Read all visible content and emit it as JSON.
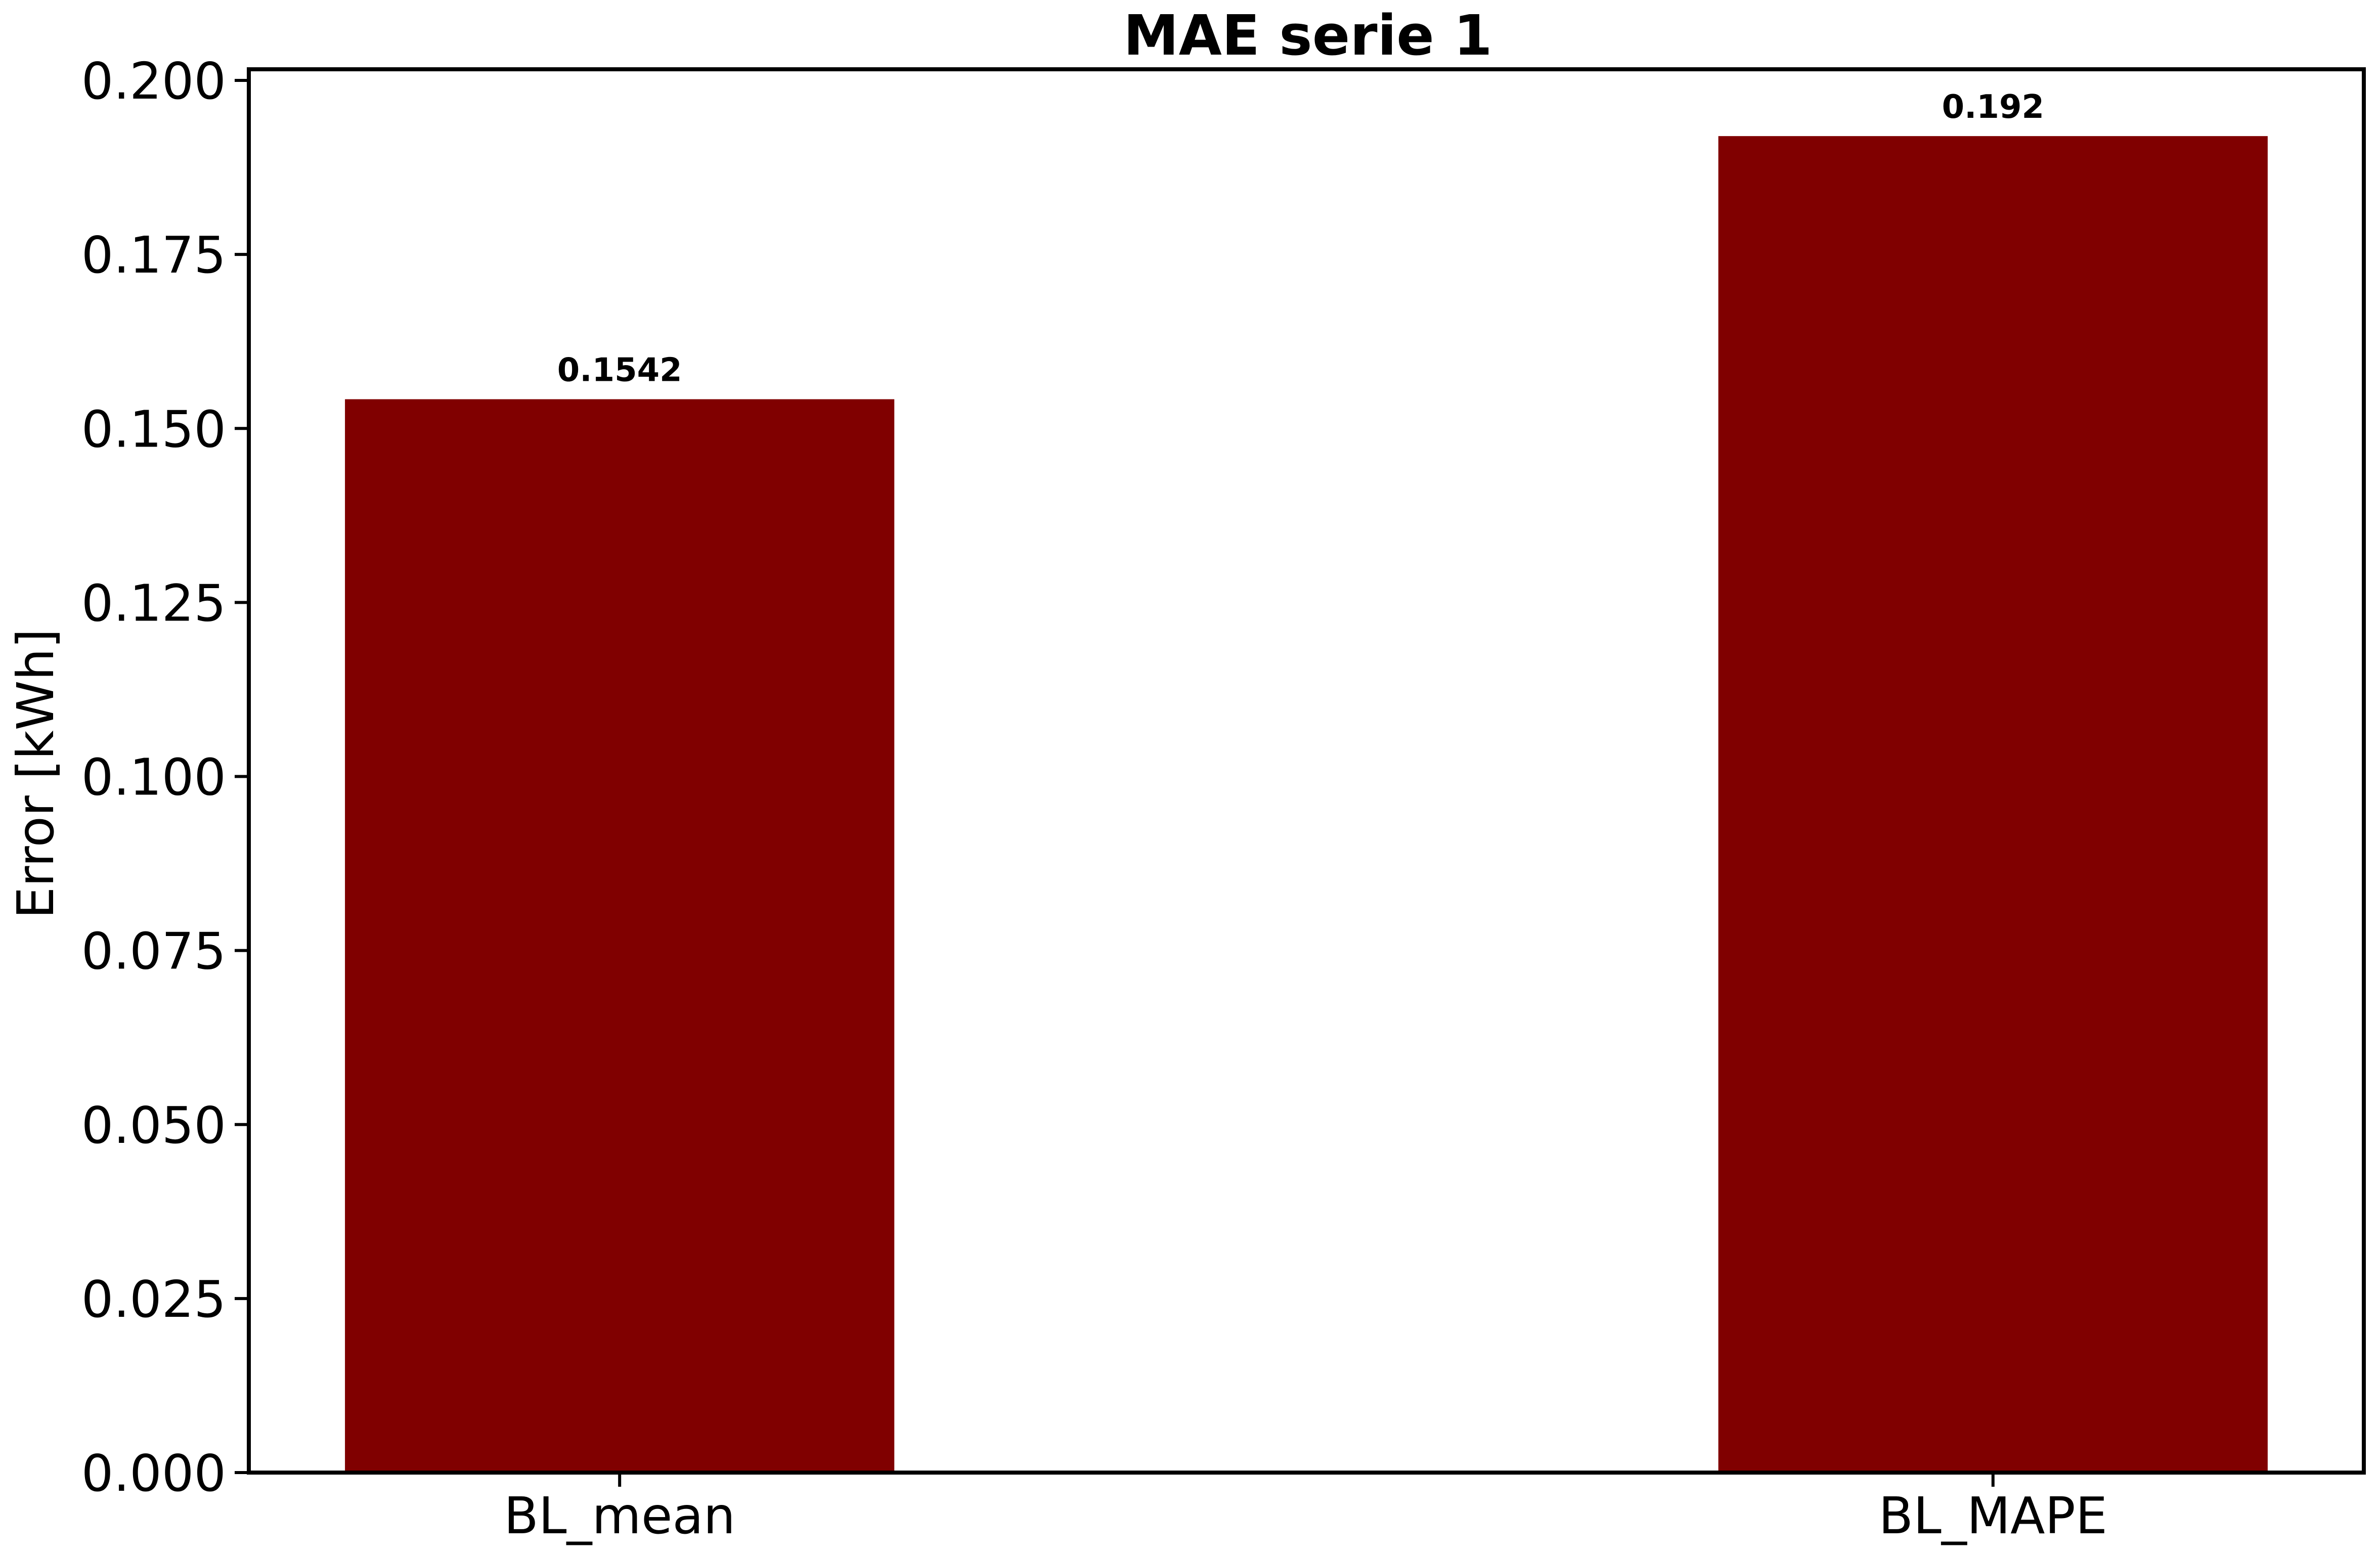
{
  "chart_data": {
    "type": "bar",
    "title": "MAE serie 1",
    "xlabel": "",
    "ylabel": "Error [kWh]",
    "categories": [
      "BL_mean",
      "BL_MAPE"
    ],
    "values": [
      0.1542,
      0.192
    ],
    "value_labels": [
      "0.1542",
      "0.192"
    ],
    "ylim": [
      0,
      0.2016
    ],
    "yticks": [
      0.0,
      0.025,
      0.05,
      0.075,
      0.1,
      0.125,
      0.15,
      0.175,
      0.2
    ],
    "ytick_labels": [
      "0.000",
      "0.025",
      "0.050",
      "0.075",
      "0.100",
      "0.125",
      "0.150",
      "0.175",
      "0.200"
    ],
    "bar_color": "#800000",
    "grid": false,
    "legend": "none"
  }
}
